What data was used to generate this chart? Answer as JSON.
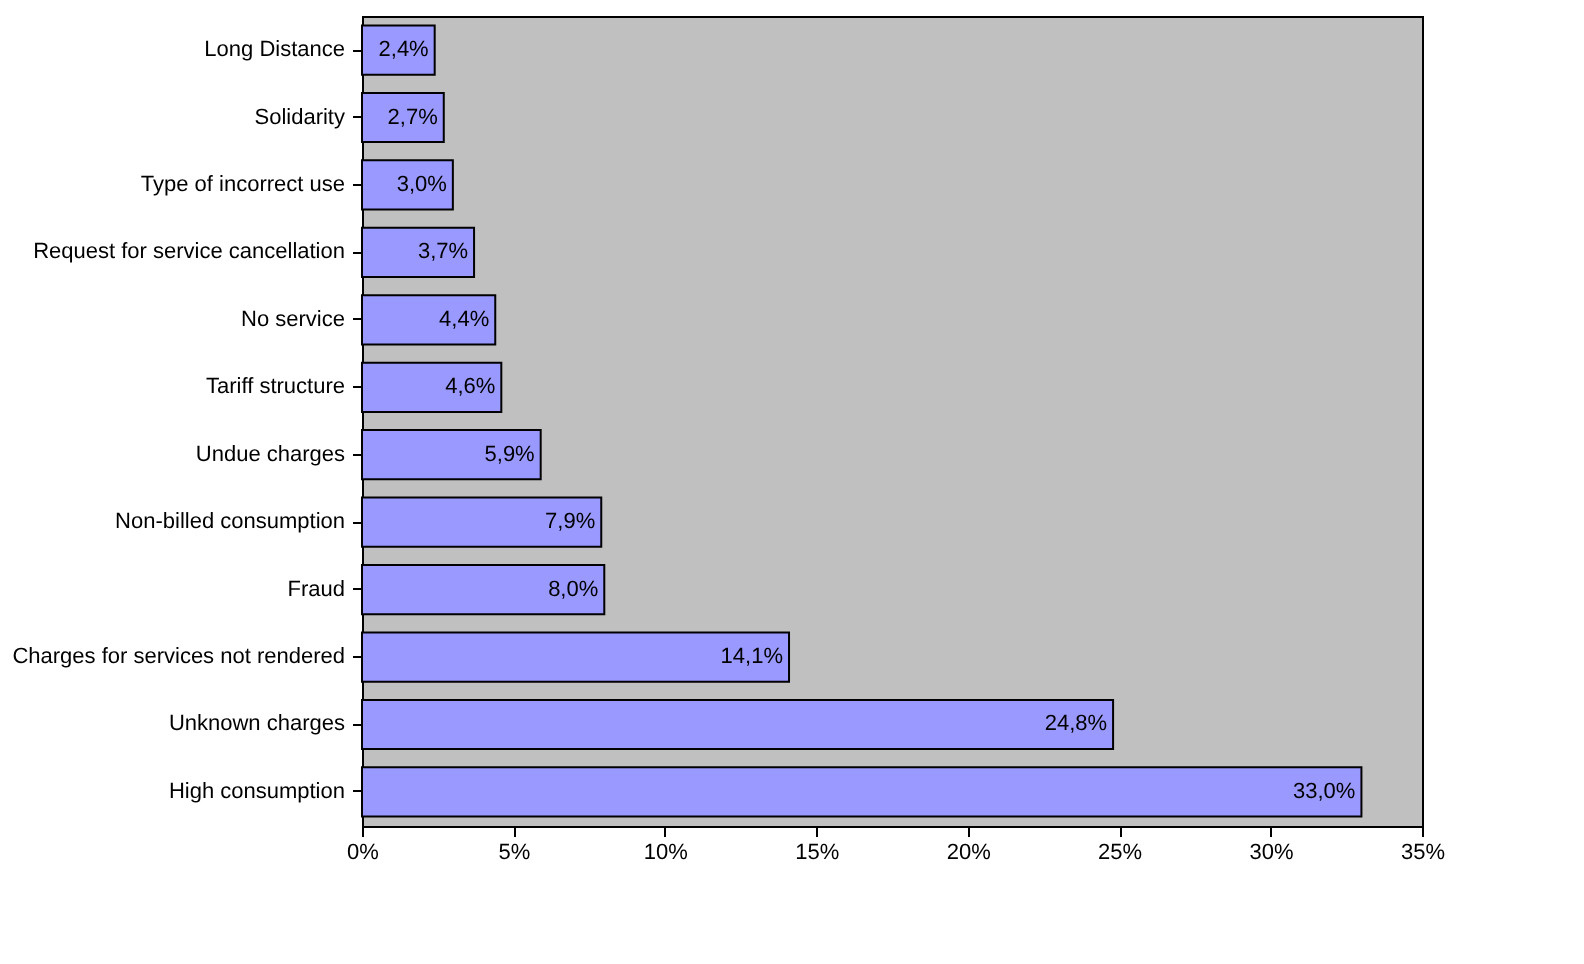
{
  "chart_data": {
    "type": "bar",
    "orientation": "horizontal",
    "categories": [
      "Long Distance",
      "Solidarity",
      "Type of incorrect use",
      "Request for service cancellation",
      "No service",
      "Tariff structure",
      "Undue charges",
      "Non-billed consumption",
      "Fraud",
      "Charges for services not rendered",
      "Unknown charges",
      "High consumption"
    ],
    "values": [
      2.4,
      2.7,
      3.0,
      3.7,
      4.4,
      4.6,
      5.9,
      7.9,
      8.0,
      14.1,
      24.8,
      33.0
    ],
    "value_labels": [
      "2,4%",
      "2,7%",
      "3,0%",
      "3,7%",
      "4,4%",
      "4,6%",
      "5,9%",
      "7,9%",
      "8,0%",
      "14,1%",
      "24,8%",
      "33,0%"
    ],
    "color": "#9999ff",
    "xlim": [
      0,
      35
    ],
    "xticks": [
      {
        "value": 0,
        "label": "0%"
      },
      {
        "value": 5,
        "label": "5%"
      },
      {
        "value": 10,
        "label": "10%"
      },
      {
        "value": 15,
        "label": "15%"
      },
      {
        "value": 20,
        "label": "20%"
      },
      {
        "value": 25,
        "label": "25%"
      },
      {
        "value": 30,
        "label": "30%"
      },
      {
        "value": 35,
        "label": "35%"
      }
    ],
    "grid": false
  }
}
